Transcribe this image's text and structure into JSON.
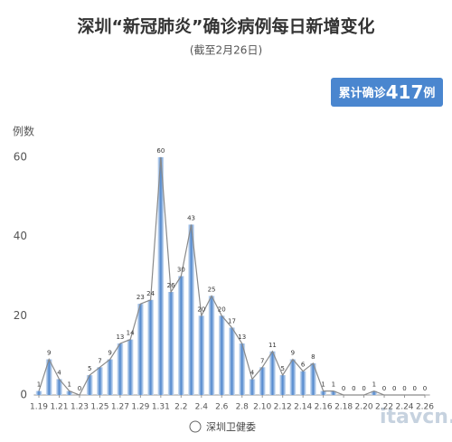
{
  "chart_data": {
    "type": "bar",
    "title": "深圳“新冠肺炎”确诊病例每日新增变化",
    "subtitle": "(截至2月26日)",
    "badge": {
      "prefix": "累计确诊",
      "value": 417,
      "suffix": "例"
    },
    "y_label": "例数",
    "footer": "深圳卫健委",
    "watermark": "itavcn.com",
    "categories": [
      "1.19",
      null,
      "1.21",
      null,
      "1.23",
      null,
      "1.25",
      null,
      "1.27",
      null,
      "1.29",
      null,
      "1.31",
      null,
      "2.2",
      null,
      "2.4",
      null,
      "2.6",
      null,
      "2.8",
      null,
      "2.10",
      null,
      "2.12",
      null,
      "2.14",
      null,
      "2.16",
      null,
      "2.18",
      null,
      "2.20",
      null,
      "2.22",
      null,
      "2.24",
      null,
      "2.26"
    ],
    "values": [
      1,
      9,
      4,
      1,
      0,
      5,
      7,
      9,
      13,
      14,
      23,
      24,
      60,
      26,
      30,
      43,
      20,
      25,
      20,
      17,
      13,
      4,
      7,
      11,
      5,
      9,
      6,
      8,
      1,
      1,
      0,
      0,
      0,
      1,
      0,
      0,
      0,
      0,
      0
    ],
    "color": "#5b8fd0",
    "line_overlay": true,
    "line_color": "#8a8a8a",
    "ylim": [
      0,
      65
    ],
    "yticks": [
      0,
      20,
      40,
      60
    ],
    "grid": false
  }
}
